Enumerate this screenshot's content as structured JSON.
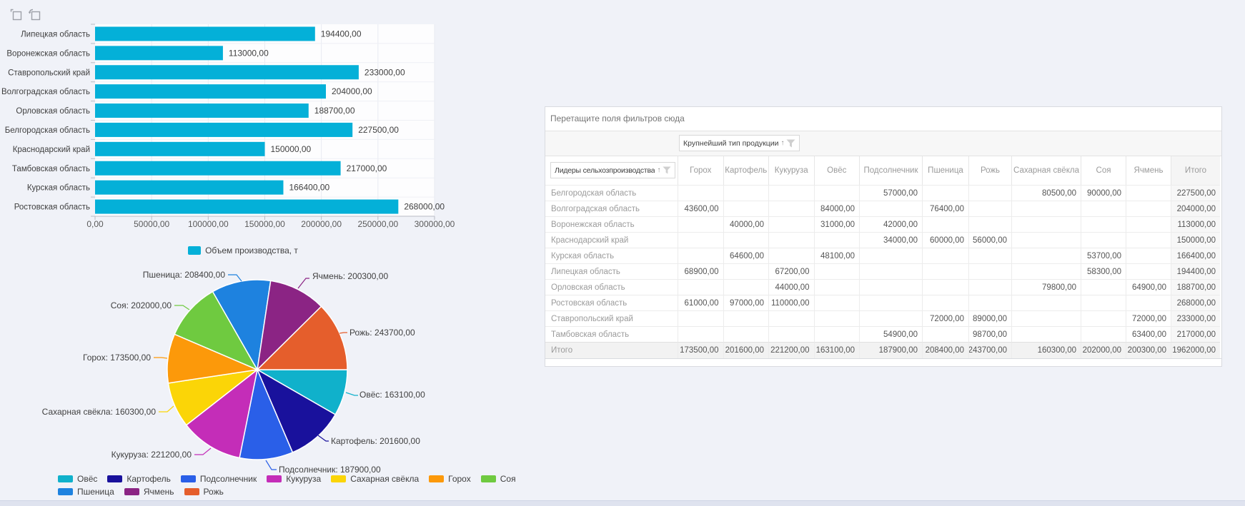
{
  "page": {
    "background": "#f0f2f8",
    "footer_strip_color": "#dfe3ef"
  },
  "toolbar": {
    "icons": [
      {
        "name": "export-layout-icon"
      },
      {
        "name": "export-chart-icon"
      }
    ]
  },
  "chart_data": [
    {
      "type": "bar",
      "orientation": "horizontal",
      "categories": [
        "Липецкая область",
        "Воронежская область",
        "Ставропольский край",
        "Волгоградская область",
        "Орловская область",
        "Белгородская область",
        "Краснодарский край",
        "Тамбовская область",
        "Курская область",
        "Ростовская область"
      ],
      "values": [
        194400,
        113000,
        233000,
        204000,
        188700,
        227500,
        150000,
        217000,
        166400,
        268000
      ],
      "series_name": "Объем производства, т",
      "bar_color": "#04b0d8",
      "xlim": [
        0,
        300000
      ],
      "x_ticks": [
        0,
        50000,
        100000,
        150000,
        200000,
        250000,
        300000
      ],
      "value_labels": true,
      "grid": true,
      "legend_position": "bottom-center",
      "number_format": "#,##0.00 comma-decimal"
    },
    {
      "type": "pie",
      "series_name": "Объем производства, т",
      "start_angle_deg": 0,
      "direction": "clockwise",
      "labels": "outside-with-connectors",
      "legend_position": "bottom-left",
      "slices": [
        {
          "label": "Овёс",
          "value": 163100,
          "color": "#10b1cb"
        },
        {
          "label": "Картофель",
          "value": 201600,
          "color": "#19119c"
        },
        {
          "label": "Подсолнечник",
          "value": 187900,
          "color": "#2a5fe8"
        },
        {
          "label": "Кукуруза",
          "value": 221200,
          "color": "#c42db8"
        },
        {
          "label": "Сахарная свёкла",
          "value": 160300,
          "color": "#fbd507"
        },
        {
          "label": "Горох",
          "value": 173500,
          "color": "#fc990a"
        },
        {
          "label": "Соя",
          "value": 202000,
          "color": "#6fca40"
        },
        {
          "label": "Пшеница",
          "value": 208400,
          "color": "#1e82df"
        },
        {
          "label": "Ячмень",
          "value": 200300,
          "color": "#8b2484"
        },
        {
          "label": "Рожь",
          "value": 243700,
          "color": "#e55e2c"
        }
      ]
    },
    {
      "type": "table",
      "name": "pivot-grid",
      "columns": [
        "Горох",
        "Картофель",
        "Кукуруза",
        "Овёс",
        "Подсолнечник",
        "Пшеница",
        "Рожь",
        "Сахарная свёкла",
        "Соя",
        "Ячмень",
        "Итого"
      ],
      "rows": [
        {
          "name": "Белгородская область",
          "values": [
            null,
            null,
            null,
            null,
            57000,
            null,
            null,
            80500,
            90000,
            null,
            227500
          ]
        },
        {
          "name": "Волгоградская область",
          "values": [
            43600,
            null,
            null,
            84000,
            null,
            76400,
            null,
            null,
            null,
            null,
            204000
          ]
        },
        {
          "name": "Воронежская область",
          "values": [
            null,
            40000,
            null,
            31000,
            42000,
            null,
            null,
            null,
            null,
            null,
            113000
          ]
        },
        {
          "name": "Краснодарский край",
          "values": [
            null,
            null,
            null,
            null,
            34000,
            60000,
            56000,
            null,
            null,
            null,
            150000
          ]
        },
        {
          "name": "Курская область",
          "values": [
            null,
            64600,
            null,
            48100,
            null,
            null,
            null,
            null,
            53700,
            null,
            166400
          ]
        },
        {
          "name": "Липецкая область",
          "values": [
            68900,
            null,
            67200,
            null,
            null,
            null,
            null,
            null,
            58300,
            null,
            194400
          ]
        },
        {
          "name": "Орловская область",
          "values": [
            null,
            null,
            44000,
            null,
            null,
            null,
            null,
            79800,
            null,
            64900,
            188700
          ]
        },
        {
          "name": "Ростовская область",
          "values": [
            61000,
            97000,
            110000,
            null,
            null,
            null,
            null,
            null,
            null,
            null,
            268000
          ]
        },
        {
          "name": "Ставропольский край",
          "values": [
            null,
            null,
            null,
            null,
            null,
            72000,
            89000,
            null,
            null,
            72000,
            233000
          ]
        },
        {
          "name": "Тамбовская область",
          "values": [
            null,
            null,
            null,
            null,
            54900,
            null,
            98700,
            null,
            null,
            63400,
            217000
          ]
        }
      ],
      "total_row": {
        "name": "Итого",
        "values": [
          173500,
          201600,
          221200,
          163100,
          187900,
          208400,
          243700,
          160300,
          202000,
          200300,
          1962000
        ]
      }
    }
  ],
  "pivot_ui": {
    "filter_area_text": "Перетащите поля фильтров сюда",
    "column_field": {
      "label": "Крупнейший тип продукции",
      "sort_icon": "arrow-up",
      "filter_icon": "funnel"
    },
    "row_field": {
      "label": "Лидеры сельхозпроизводства",
      "sort_icon": "arrow-up",
      "filter_icon": "funnel"
    }
  }
}
